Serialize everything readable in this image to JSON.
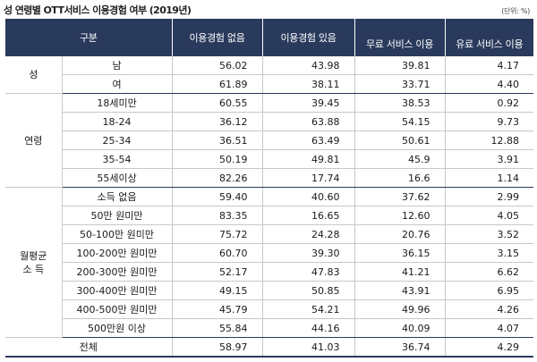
{
  "title": "성 연령별 OTT서비스 이용경험 여부 (2019년)",
  "unit": "(단위: %)",
  "headers": [
    "구분",
    "이용경험 없음",
    "이용경험 있음",
    "무료 서비스 이용",
    "유료 서비스 이용"
  ],
  "groups": {
    "sex": "성",
    "age": "연령",
    "income_line1": "월평균",
    "income_line2": "소 득"
  },
  "rows": [
    {
      "label": "남",
      "v": [
        "56.02",
        "43.98",
        "39.81",
        "4.17"
      ]
    },
    {
      "label": "여",
      "v": [
        "61.89",
        "38.11",
        "33.71",
        "4.40"
      ]
    },
    {
      "label": "18세미만",
      "v": [
        "60.55",
        "39.45",
        "38.53",
        "0.92"
      ]
    },
    {
      "label": "18-24",
      "v": [
        "36.12",
        "63.88",
        "54.15",
        "9.73"
      ]
    },
    {
      "label": "25-34",
      "v": [
        "36.51",
        "63.49",
        "50.61",
        "12.88"
      ]
    },
    {
      "label": "35-54",
      "v": [
        "50.19",
        "49.81",
        "45.9",
        "3.91"
      ]
    },
    {
      "label": "55세이상",
      "v": [
        "82.26",
        "17.74",
        "16.6",
        "1.14"
      ]
    },
    {
      "label": "소득 없음",
      "v": [
        "59.40",
        "40.60",
        "37.62",
        "2.99"
      ]
    },
    {
      "label": "50만 원미만",
      "v": [
        "83.35",
        "16.65",
        "12.60",
        "4.05"
      ]
    },
    {
      "label": "50-100만 원미만",
      "v": [
        "75.72",
        "24.28",
        "20.76",
        "3.52"
      ]
    },
    {
      "label": "100-200만 원미만",
      "v": [
        "60.70",
        "39.30",
        "36.15",
        "3.15"
      ]
    },
    {
      "label": "200-300만 원미만",
      "v": [
        "52.17",
        "47.83",
        "41.21",
        "6.62"
      ]
    },
    {
      "label": "300-400만 원미만",
      "v": [
        "49.15",
        "50.85",
        "43.91",
        "6.95"
      ]
    },
    {
      "label": "400-500만 원미만",
      "v": [
        "45.79",
        "54.21",
        "49.96",
        "4.26"
      ]
    },
    {
      "label": "500만원 이상",
      "v": [
        "55.84",
        "44.16",
        "40.09",
        "4.07"
      ]
    }
  ],
  "total": {
    "label": "전체",
    "v": [
      "58.97",
      "41.03",
      "36.74",
      "4.29"
    ]
  }
}
